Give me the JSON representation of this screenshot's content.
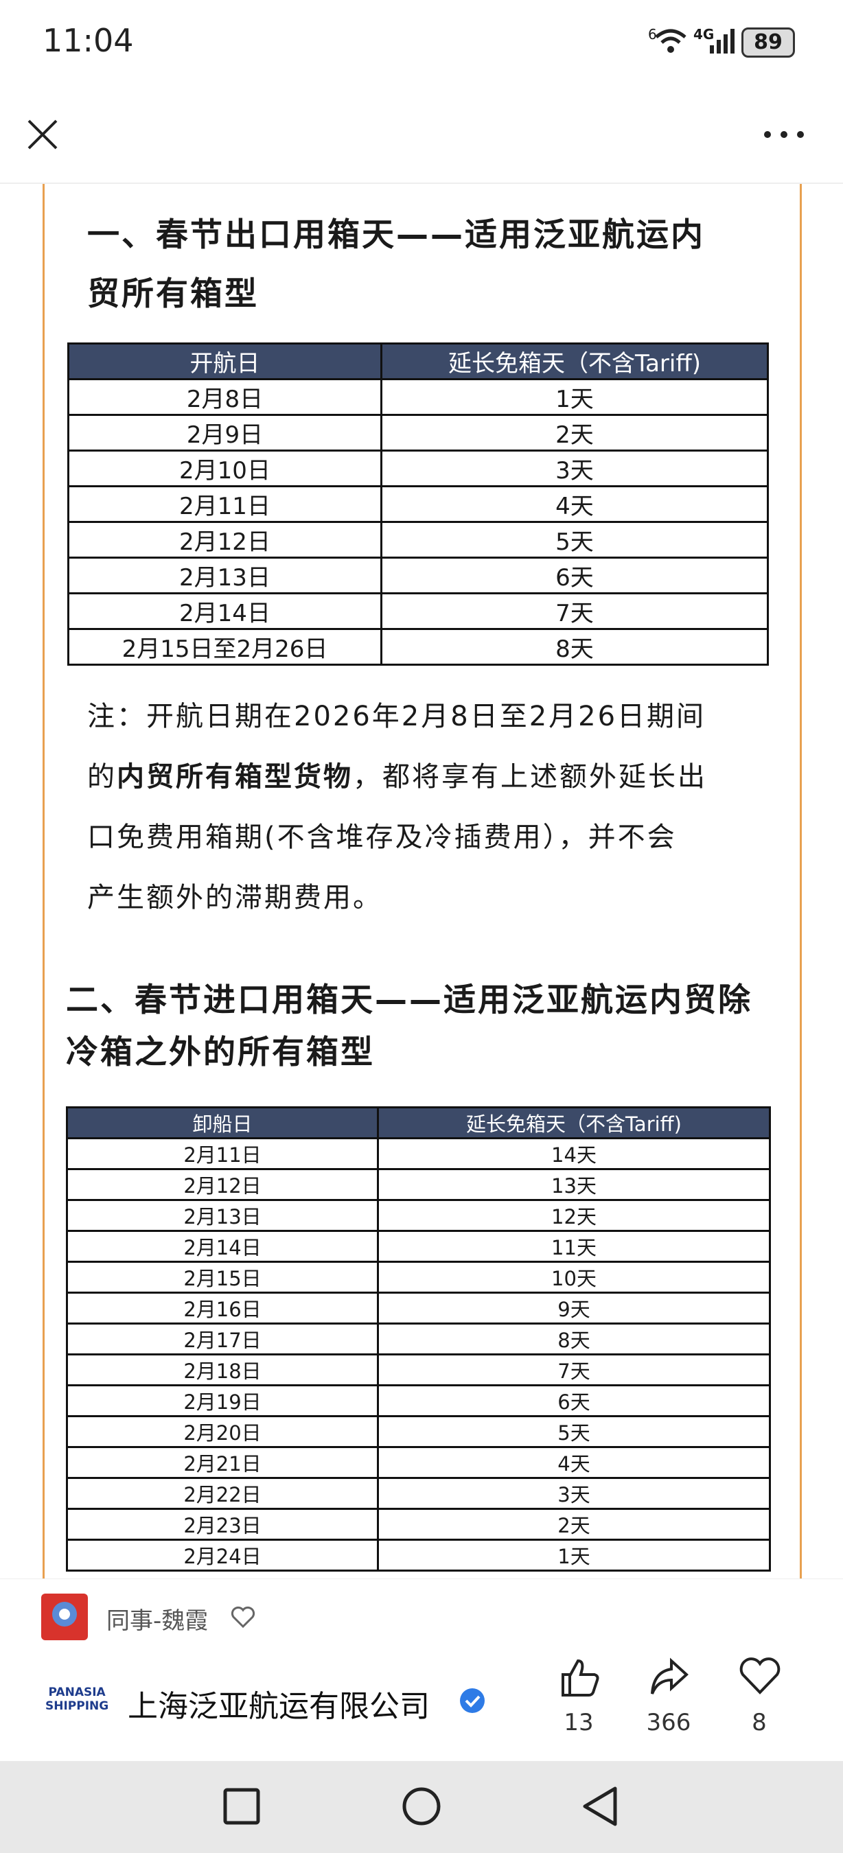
{
  "status": {
    "time": "11:04",
    "wifi_label": "6",
    "network": "4G",
    "battery": "89"
  },
  "heading1": [
    "一、春节出口用箱天——适用泛亚航运内",
    "贸所有箱型"
  ],
  "table1": {
    "header": [
      "开航日",
      "延长免箱天（不含Tariff)"
    ],
    "rows": [
      [
        "2月8日",
        "1天"
      ],
      [
        "2月9日",
        "2天"
      ],
      [
        "2月10日",
        "3天"
      ],
      [
        "2月11日",
        "4天"
      ],
      [
        "2月12日",
        "5天"
      ],
      [
        "2月13日",
        "6天"
      ],
      [
        "2月14日",
        "7天"
      ],
      [
        "2月15日至2月26日",
        "8天"
      ]
    ]
  },
  "note": [
    [
      {
        "text": "注：开航日期在2026年2月8日至2月26日期间",
        "bold": false
      }
    ],
    [
      {
        "text": "的",
        "bold": false
      },
      {
        "text": "内贸所有箱型货物",
        "bold": true
      },
      {
        "text": "，都将享有上述额外延长出",
        "bold": false
      }
    ],
    [
      {
        "text": "口免费用箱期(不含堆存及冷插费用），并不会",
        "bold": false
      }
    ],
    [
      {
        "text": "产生额外的滞期费用。",
        "bold": false
      }
    ]
  ],
  "heading2": [
    "二、春节进口用箱天——适用泛亚航运内贸除",
    "冷箱之外的所有箱型"
  ],
  "table2": {
    "header": [
      "卸船日",
      "延长免箱天（不含Tariff)"
    ],
    "rows": [
      [
        "2月11日",
        "14天"
      ],
      [
        "2月12日",
        "13天"
      ],
      [
        "2月13日",
        "12天"
      ],
      [
        "2月14日",
        "11天"
      ],
      [
        "2月15日",
        "10天"
      ],
      [
        "2月16日",
        "9天"
      ],
      [
        "2月17日",
        "8天"
      ],
      [
        "2月18日",
        "7天"
      ],
      [
        "2月19日",
        "6天"
      ],
      [
        "2月20日",
        "5天"
      ],
      [
        "2月21日",
        "4天"
      ],
      [
        "2月22日",
        "3天"
      ],
      [
        "2月23日",
        "2天"
      ],
      [
        "2月24日",
        "1天"
      ]
    ]
  },
  "footer": {
    "author": "同事-魏霞",
    "logo": [
      "PANASIA",
      "SHIPPING"
    ],
    "company": "上海泛亚航运有限公司",
    "likes": "13",
    "shares": "366",
    "favorites": "8"
  }
}
